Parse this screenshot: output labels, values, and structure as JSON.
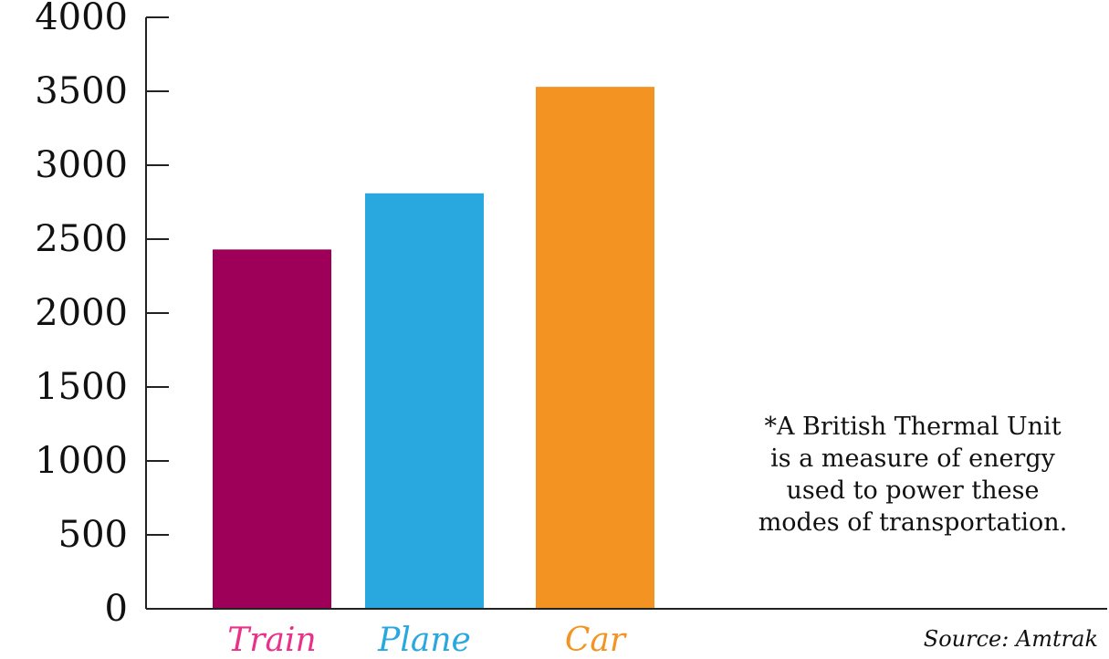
{
  "chart_data": {
    "type": "bar",
    "categories": [
      "Train",
      "Plane",
      "Car"
    ],
    "values": [
      2430,
      2810,
      3530
    ],
    "bar_colors": [
      "#9e0059",
      "#29a8e0",
      "#f39322"
    ],
    "label_colors": [
      "#e8318a",
      "#29a8e0",
      "#f39322"
    ],
    "ylim": [
      0,
      4000
    ],
    "yticks": [
      0,
      500,
      1000,
      1500,
      2000,
      2500,
      3000,
      3500,
      4000
    ],
    "grid": false,
    "title": "",
    "xlabel": "",
    "ylabel": ""
  },
  "note": {
    "lines": [
      "*A British Thermal Unit",
      "is a measure of energy",
      "used to power these",
      "modes of transportation."
    ]
  },
  "source": "Source: Amtrak"
}
